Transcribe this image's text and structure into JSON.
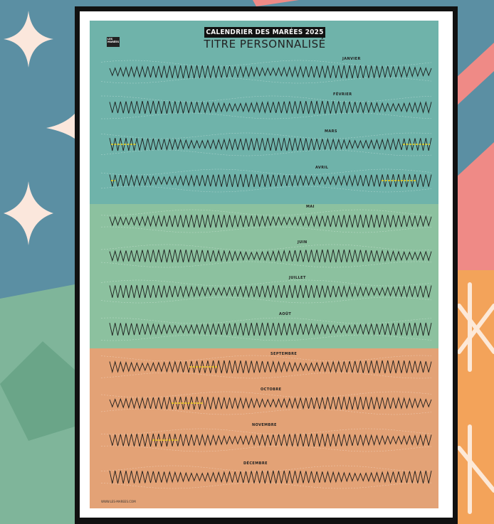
{
  "poster": {
    "title": "CALENDRIER DES MARÉES 2025",
    "subtitle": "TITRE PERSONNALISÉ",
    "logo_text": "LES MARÉES",
    "footer_url": "WWW.LES-MAREES.COM",
    "months": [
      {
        "label": "JANVIER"
      },
      {
        "label": "FÉVRIER"
      },
      {
        "label": "MARS"
      },
      {
        "label": "AVRIL"
      },
      {
        "label": "MAI"
      },
      {
        "label": "JUIN"
      },
      {
        "label": "JUILLET"
      },
      {
        "label": "AOÛT"
      },
      {
        "label": "SEPTEMBRE"
      },
      {
        "label": "OCTOBRE"
      },
      {
        "label": "NOVEMBRE"
      },
      {
        "label": "DÉCEMBRE"
      }
    ]
  },
  "colors": {
    "winter": "#6fb3aa",
    "spring": "#8cc19f",
    "autumn": "#e3a276",
    "wave": "#1a1a1a",
    "highlight": "#f2d31a",
    "bg_blue": "#5b8fa3",
    "bg_pink": "#ef8a86",
    "bg_orange": "#f3a35a",
    "bg_green": "#7fb59a"
  }
}
